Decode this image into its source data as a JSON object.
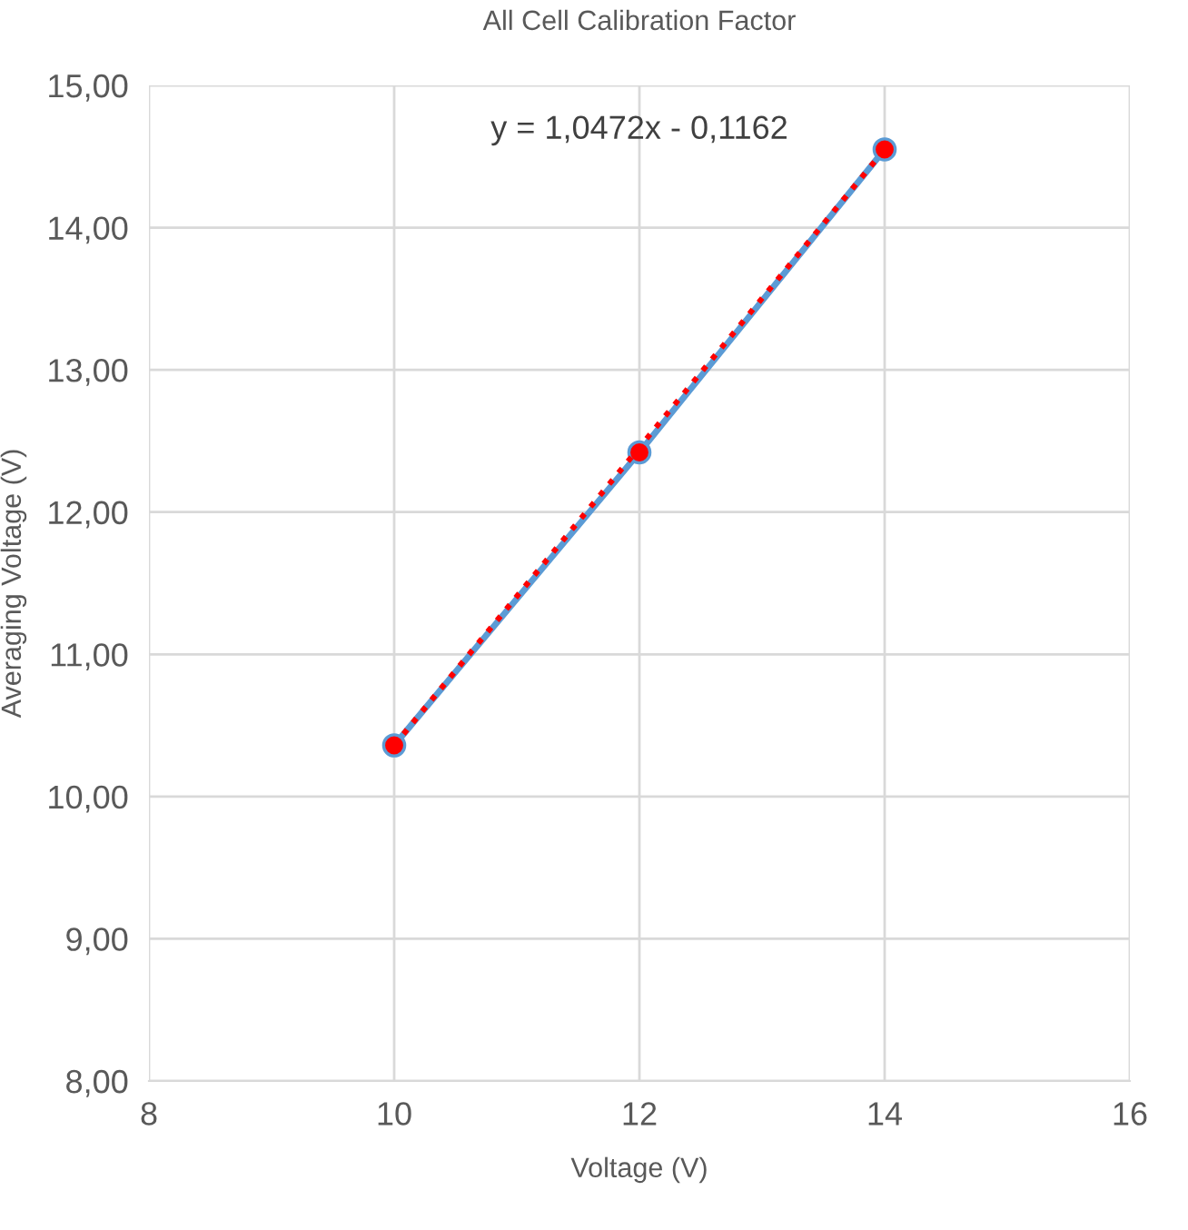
{
  "chart_data": {
    "type": "scatter",
    "title": "All Cell Calibration Factor",
    "xlabel": "Voltage (V)",
    "ylabel": "Averaging Voltage (V)",
    "xlim": [
      8,
      16
    ],
    "xticks": [
      8,
      10,
      12,
      14,
      16
    ],
    "ylim": [
      8,
      15
    ],
    "yticks": [
      {
        "value": 8,
        "label": "8,00"
      },
      {
        "value": 9,
        "label": "9,00"
      },
      {
        "value": 10,
        "label": "10,00"
      },
      {
        "value": 11,
        "label": "11,00"
      },
      {
        "value": 12,
        "label": "12,00"
      },
      {
        "value": 13,
        "label": "13,00"
      },
      {
        "value": 14,
        "label": "14,00"
      },
      {
        "value": 15,
        "label": "15,00"
      }
    ],
    "grid": true,
    "legend": false,
    "series": [
      {
        "type": "line",
        "color": "#5b9bd5",
        "x": [
          10,
          12,
          14
        ],
        "values": [
          10.36,
          12.42,
          14.55
        ],
        "marker": "none",
        "line_style": "solid"
      },
      {
        "color": "#ff0000",
        "x": [
          10,
          12,
          14
        ],
        "values": [
          10.36,
          12.42,
          14.55
        ],
        "marker": "circle"
      },
      {
        "type": "line",
        "color": "#ff0000",
        "x": [
          10,
          14
        ],
        "values": [
          10.36,
          14.55
        ],
        "marker": "none",
        "line_style": "dotted"
      }
    ],
    "annotations": [
      "y = 1,0472x - 0,1162"
    ]
  }
}
